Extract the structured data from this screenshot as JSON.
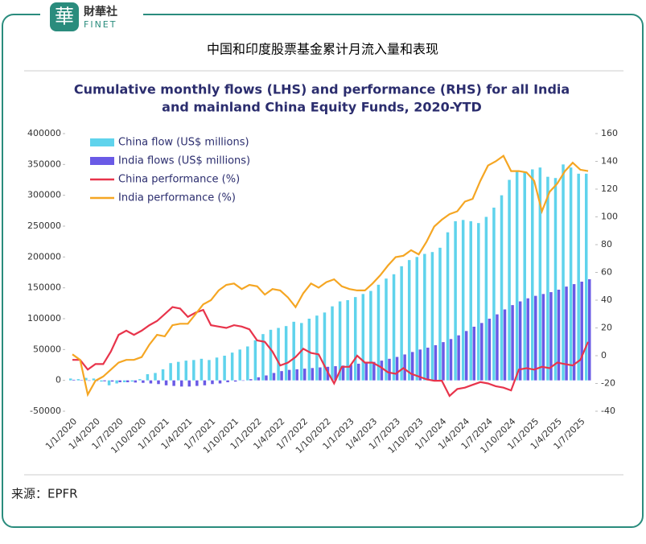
{
  "header": {
    "logo_char": "華",
    "logo_name": "財華社",
    "logo_sub": "FINET",
    "title": "中国和印度股票基金累计月流入量和表现"
  },
  "source": "来源：EPFR",
  "chart_data": {
    "type": "bar",
    "title": [
      "Cumulative monthly flows (LHS) and performance (RHS) for all India",
      "and mainland China Equity Funds, 2020-YTD"
    ],
    "categories": [
      "1/1/2020",
      null,
      null,
      "1/4/2020",
      null,
      null,
      "1/7/2020",
      null,
      null,
      "1/10/2020",
      null,
      null,
      "1/1/2021",
      null,
      null,
      "1/4/2021",
      null,
      null,
      "1/7/2021",
      null,
      null,
      "1/10/2021",
      null,
      null,
      "1/1/2022",
      null,
      null,
      "1/4/2022",
      null,
      null,
      "1/7/2022",
      null,
      null,
      "1/10/2022",
      null,
      null,
      "1/1/2023",
      null,
      null,
      "1/4/2023",
      null,
      null,
      "1/7/2023",
      null,
      null,
      "1/10/2023",
      null,
      null,
      "1/1/2024",
      null,
      null,
      "1/4/2024",
      null,
      null,
      "1/7/2024",
      null,
      null,
      "1/10/2024",
      null,
      null,
      "1/1/2025",
      null,
      null,
      "1/4/2025",
      null,
      null,
      "1/7/2025",
      null
    ],
    "series": [
      {
        "name": "China flow (US$ millions)",
        "type": "bar",
        "color": "#5fd3ec",
        "values": [
          3000,
          2000,
          4000,
          3000,
          -2000,
          -8000,
          -5000,
          -3000,
          -2000,
          2000,
          10000,
          12000,
          18000,
          28000,
          30000,
          32000,
          33000,
          35000,
          33000,
          37000,
          40000,
          45000,
          50000,
          55000,
          65000,
          75000,
          82000,
          85000,
          88000,
          95000,
          93000,
          100000,
          105000,
          110000,
          120000,
          128000,
          130000,
          135000,
          140000,
          145000,
          155000,
          165000,
          172000,
          185000,
          195000,
          200000,
          205000,
          208000,
          215000,
          240000,
          258000,
          260000,
          258000,
          255000,
          265000,
          280000,
          300000,
          325000,
          340000,
          338000,
          342000,
          345000,
          330000,
          328000,
          350000,
          345000,
          335000,
          335000
        ]
      },
      {
        "name": "India flows (US$ millions)",
        "type": "bar",
        "color": "#6a5ae6",
        "values": [
          1000,
          500,
          -500,
          -1000,
          -1500,
          -2000,
          -3000,
          -3000,
          -3500,
          -4000,
          -5000,
          -6000,
          -8000,
          -9000,
          -10000,
          -10000,
          -9000,
          -8000,
          -6000,
          -5000,
          -3000,
          -2000,
          0,
          2000,
          5000,
          8000,
          12000,
          15000,
          17000,
          18000,
          19000,
          20000,
          21000,
          22000,
          23000,
          24000,
          25000,
          27000,
          28000,
          30000,
          32000,
          35000,
          38000,
          42000,
          46000,
          50000,
          53000,
          57000,
          62000,
          67000,
          73000,
          80000,
          87000,
          93000,
          100000,
          107000,
          115000,
          122000,
          128000,
          133000,
          137000,
          140000,
          143000,
          147000,
          152000,
          156000,
          160000,
          164000
        ]
      },
      {
        "name": "China performance (%)",
        "type": "line",
        "axis": "y2",
        "color": "#e8344b",
        "values": [
          -3,
          -3,
          -10,
          -6,
          -6,
          3,
          15,
          18,
          15,
          18,
          22,
          25,
          30,
          35,
          34,
          28,
          31,
          33,
          22,
          21,
          20,
          22,
          21,
          19,
          11,
          10,
          3,
          -7,
          -5,
          -1,
          5,
          2,
          1,
          -10,
          -20,
          -8,
          -8,
          0,
          -5,
          -5,
          -8,
          -12,
          -13,
          -9,
          -13,
          -15,
          -17,
          -18,
          -18,
          -29,
          -24,
          -23,
          -21,
          -19,
          -20,
          -22,
          -23,
          -25,
          -10,
          -9,
          -10,
          -8,
          -9,
          -5,
          -6,
          -7,
          -3,
          10
        ]
      },
      {
        "name": "India performance (%)",
        "type": "line",
        "axis": "y2",
        "color": "#f5a623",
        "values": [
          1,
          -3,
          -28,
          -18,
          -15,
          -10,
          -5,
          -3,
          -3,
          -1,
          8,
          15,
          14,
          22,
          23,
          23,
          30,
          37,
          40,
          47,
          51,
          52,
          48,
          51,
          50,
          44,
          48,
          47,
          42,
          35,
          45,
          52,
          49,
          53,
          55,
          50,
          48,
          47,
          47,
          52,
          58,
          65,
          71,
          72,
          76,
          73,
          82,
          93,
          98,
          102,
          104,
          111,
          113,
          126,
          137,
          140,
          144,
          133,
          133,
          132,
          126,
          104,
          118,
          124,
          133,
          139,
          134,
          133
        ]
      }
    ],
    "ylim": [
      -50000,
      400000
    ],
    "yticks": [
      -50000,
      0,
      50000,
      100000,
      150000,
      200000,
      250000,
      300000,
      350000,
      400000
    ],
    "y2lim": [
      -40,
      160
    ],
    "y2ticks": [
      -40,
      -20,
      0,
      20,
      40,
      60,
      80,
      100,
      120,
      140,
      160
    ],
    "legend": "upper left"
  }
}
